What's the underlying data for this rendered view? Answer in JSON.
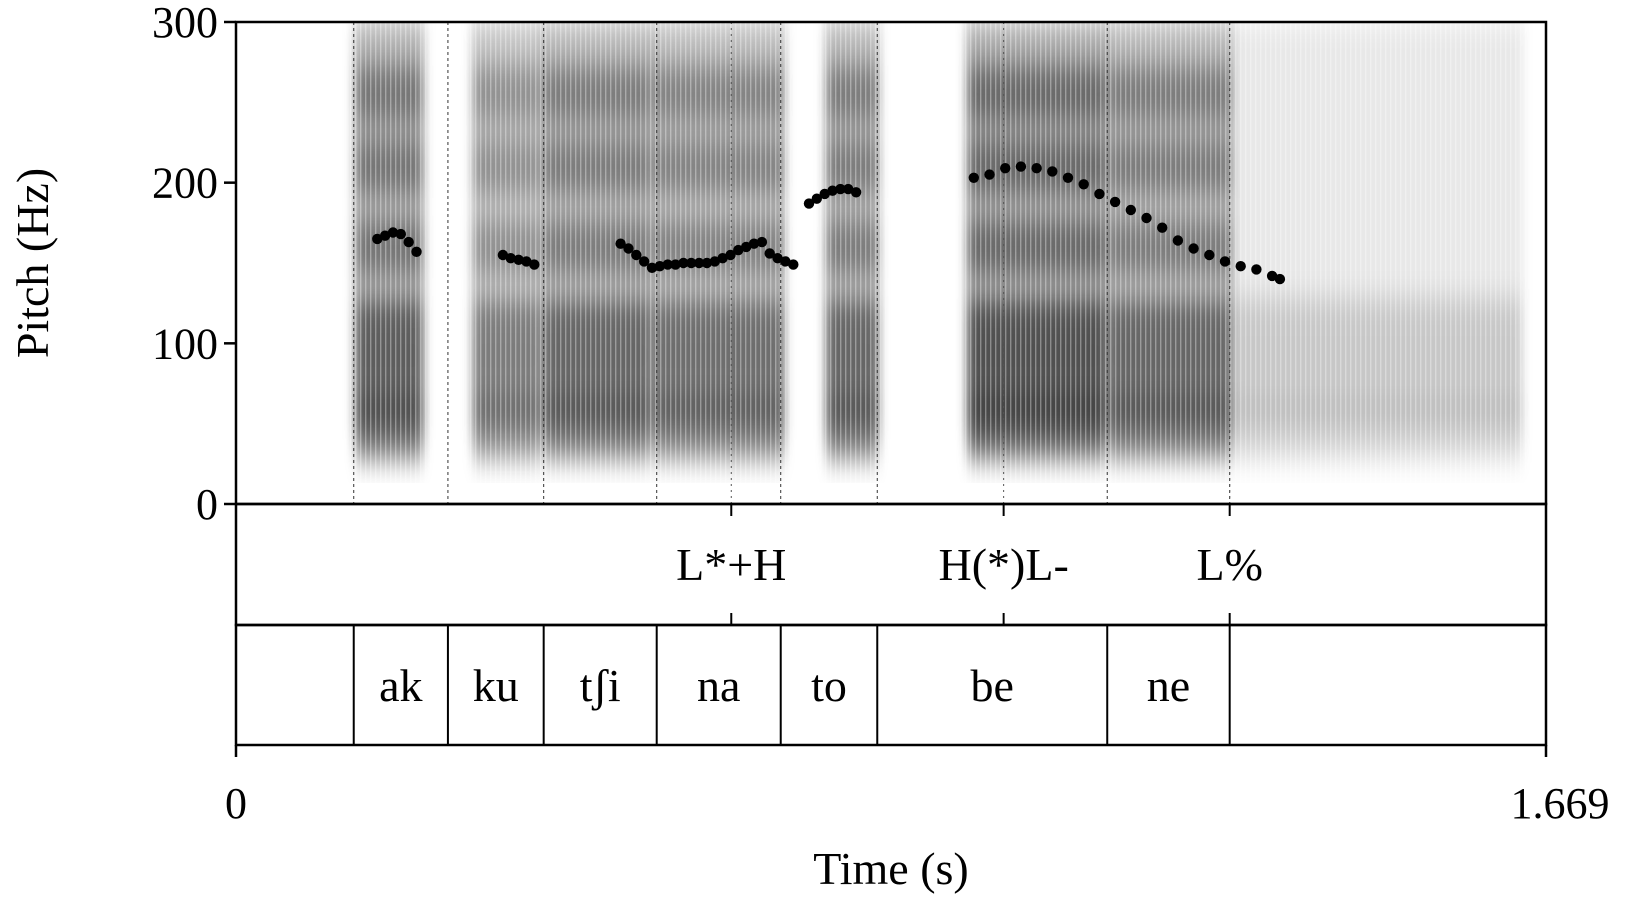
{
  "chart_data": {
    "type": "scatter",
    "description_kind": "pitch track over spectrogram with TextGrid tiers",
    "xlabel": "Time (s)",
    "ylabel": "Pitch (Hz)",
    "xlim": [
      0,
      1.669
    ],
    "ylim": [
      0,
      300
    ],
    "x_tick_labels": [
      "0",
      "1.669"
    ],
    "y_ticks": [
      0,
      100,
      200,
      300
    ],
    "y_tick_labels": [
      "0",
      "100",
      "200",
      "300"
    ],
    "colors": {
      "pitch": "#000000",
      "spectrogram": "#1a1a1a",
      "frame": "#000000"
    },
    "pitch_series": [
      {
        "t": 0.18,
        "f": 165
      },
      {
        "t": 0.19,
        "f": 167
      },
      {
        "t": 0.2,
        "f": 169
      },
      {
        "t": 0.21,
        "f": 168
      },
      {
        "t": 0.22,
        "f": 163
      },
      {
        "t": 0.23,
        "f": 157
      },
      {
        "t": 0.34,
        "f": 155
      },
      {
        "t": 0.35,
        "f": 153
      },
      {
        "t": 0.36,
        "f": 152
      },
      {
        "t": 0.37,
        "f": 151
      },
      {
        "t": 0.38,
        "f": 149
      },
      {
        "t": 0.49,
        "f": 162
      },
      {
        "t": 0.5,
        "f": 159
      },
      {
        "t": 0.51,
        "f": 155
      },
      {
        "t": 0.52,
        "f": 151
      },
      {
        "t": 0.53,
        "f": 147
      },
      {
        "t": 0.54,
        "f": 148
      },
      {
        "t": 0.55,
        "f": 149
      },
      {
        "t": 0.56,
        "f": 149
      },
      {
        "t": 0.57,
        "f": 150
      },
      {
        "t": 0.58,
        "f": 150
      },
      {
        "t": 0.59,
        "f": 150
      },
      {
        "t": 0.6,
        "f": 150
      },
      {
        "t": 0.61,
        "f": 151
      },
      {
        "t": 0.62,
        "f": 153
      },
      {
        "t": 0.63,
        "f": 155
      },
      {
        "t": 0.64,
        "f": 158
      },
      {
        "t": 0.65,
        "f": 160
      },
      {
        "t": 0.66,
        "f": 162
      },
      {
        "t": 0.67,
        "f": 163
      },
      {
        "t": 0.68,
        "f": 156
      },
      {
        "t": 0.69,
        "f": 153
      },
      {
        "t": 0.7,
        "f": 151
      },
      {
        "t": 0.71,
        "f": 149
      },
      {
        "t": 0.73,
        "f": 187
      },
      {
        "t": 0.74,
        "f": 190
      },
      {
        "t": 0.75,
        "f": 193
      },
      {
        "t": 0.76,
        "f": 195
      },
      {
        "t": 0.77,
        "f": 196
      },
      {
        "t": 0.78,
        "f": 196
      },
      {
        "t": 0.79,
        "f": 194
      },
      {
        "t": 0.94,
        "f": 203
      },
      {
        "t": 0.96,
        "f": 205
      },
      {
        "t": 0.98,
        "f": 209
      },
      {
        "t": 1.0,
        "f": 210
      },
      {
        "t": 1.02,
        "f": 209
      },
      {
        "t": 1.04,
        "f": 207
      },
      {
        "t": 1.06,
        "f": 203
      },
      {
        "t": 1.08,
        "f": 199
      },
      {
        "t": 1.1,
        "f": 193
      },
      {
        "t": 1.12,
        "f": 188
      },
      {
        "t": 1.14,
        "f": 183
      },
      {
        "t": 1.16,
        "f": 178
      },
      {
        "t": 1.18,
        "f": 172
      },
      {
        "t": 1.2,
        "f": 164
      },
      {
        "t": 1.22,
        "f": 159
      },
      {
        "t": 1.24,
        "f": 155
      },
      {
        "t": 1.26,
        "f": 151
      },
      {
        "t": 1.28,
        "f": 148
      },
      {
        "t": 1.3,
        "f": 146
      },
      {
        "t": 1.32,
        "f": 142
      },
      {
        "t": 1.33,
        "f": 140
      }
    ],
    "tiers": {
      "tones": [
        {
          "label": "L*+H",
          "t": 0.631
        },
        {
          "label": "H(*)L-",
          "t": 0.978
        },
        {
          "label": "L%",
          "t": 1.266
        }
      ],
      "syllables": [
        {
          "label": "ak",
          "start": 0.15,
          "end": 0.27
        },
        {
          "label": "ku",
          "start": 0.27,
          "end": 0.392
        },
        {
          "label": "tʃi",
          "start": 0.392,
          "end": 0.536
        },
        {
          "label": "na",
          "start": 0.536,
          "end": 0.694
        },
        {
          "label": "to",
          "start": 0.694,
          "end": 0.817
        },
        {
          "label": "be",
          "start": 0.817,
          "end": 1.11
        },
        {
          "label": "ne",
          "start": 1.11,
          "end": 1.266
        }
      ]
    },
    "spectrogram_segments": [
      {
        "start": 0.15,
        "end": 0.24,
        "darkness": 0.85
      },
      {
        "start": 0.3,
        "end": 0.39,
        "darkness": 0.65
      },
      {
        "start": 0.39,
        "end": 0.53,
        "darkness": 0.8
      },
      {
        "start": 0.53,
        "end": 0.7,
        "darkness": 0.75
      },
      {
        "start": 0.75,
        "end": 0.82,
        "darkness": 0.8
      },
      {
        "start": 0.93,
        "end": 1.11,
        "darkness": 0.95
      },
      {
        "start": 1.11,
        "end": 1.27,
        "darkness": 0.8
      },
      {
        "start": 1.27,
        "end": 1.64,
        "darkness": 0.25
      }
    ]
  }
}
